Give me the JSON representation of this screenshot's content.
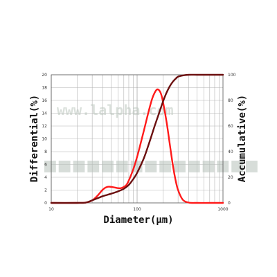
{
  "chart_data": {
    "type": "line",
    "xlabel": "Diameter(μm)",
    "ylabel_left": "Differential(%)",
    "ylabel_right": "Accumulative(%)",
    "x_scale": "log",
    "xlim": [
      10,
      1000
    ],
    "ylim_left": [
      0,
      20
    ],
    "ylim_right": [
      0,
      100
    ],
    "x_ticks": [
      "10",
      "100",
      "1000"
    ],
    "y_ticks_left": [
      "0",
      "2",
      "4",
      "6",
      "8",
      "10",
      "12",
      "14",
      "16",
      "18",
      "20"
    ],
    "y_ticks_right": [
      "0",
      "20",
      "40",
      "60",
      "80",
      "100"
    ],
    "grid": true,
    "watermark_text": "www.lalpha.com",
    "series": [
      {
        "axis": "left",
        "color": "#ff1a1a",
        "x": [
          10,
          20,
          25,
          30,
          35,
          40,
          45,
          50,
          55,
          60,
          65,
          70,
          75,
          80,
          90,
          100,
          110,
          120,
          130,
          140,
          150,
          160,
          170,
          180,
          190,
          200,
          220,
          240,
          260,
          280,
          300,
          340,
          400,
          500,
          700,
          1000
        ],
        "y": [
          0,
          0,
          0.05,
          0.4,
          1.2,
          2.1,
          2.5,
          2.5,
          2.4,
          2.3,
          2.3,
          2.5,
          2.8,
          3.5,
          5.2,
          7.2,
          9.3,
          11.3,
          13.2,
          14.9,
          16.3,
          17.2,
          17.7,
          17.6,
          17.0,
          15.8,
          12.7,
          9.2,
          6.0,
          3.6,
          2.0,
          0.5,
          0.05,
          0,
          0,
          0
        ]
      },
      {
        "axis": "right",
        "color": "#6b0f0f",
        "x": [
          10,
          20,
          25,
          28,
          30,
          35,
          40,
          45,
          50,
          60,
          70,
          80,
          90,
          100,
          120,
          140,
          160,
          180,
          200,
          220,
          240,
          260,
          280,
          300,
          350,
          400,
          500,
          700,
          1000
        ],
        "y": [
          0,
          0,
          0.2,
          1.2,
          2.0,
          3.8,
          5.3,
          6.3,
          7.2,
          9.0,
          11.0,
          14.0,
          18.5,
          23.5,
          35.0,
          48.0,
          60.0,
          70.0,
          79.0,
          86.0,
          91.0,
          94.5,
          96.8,
          98.5,
          99.6,
          100,
          100,
          100,
          100
        ]
      }
    ]
  }
}
